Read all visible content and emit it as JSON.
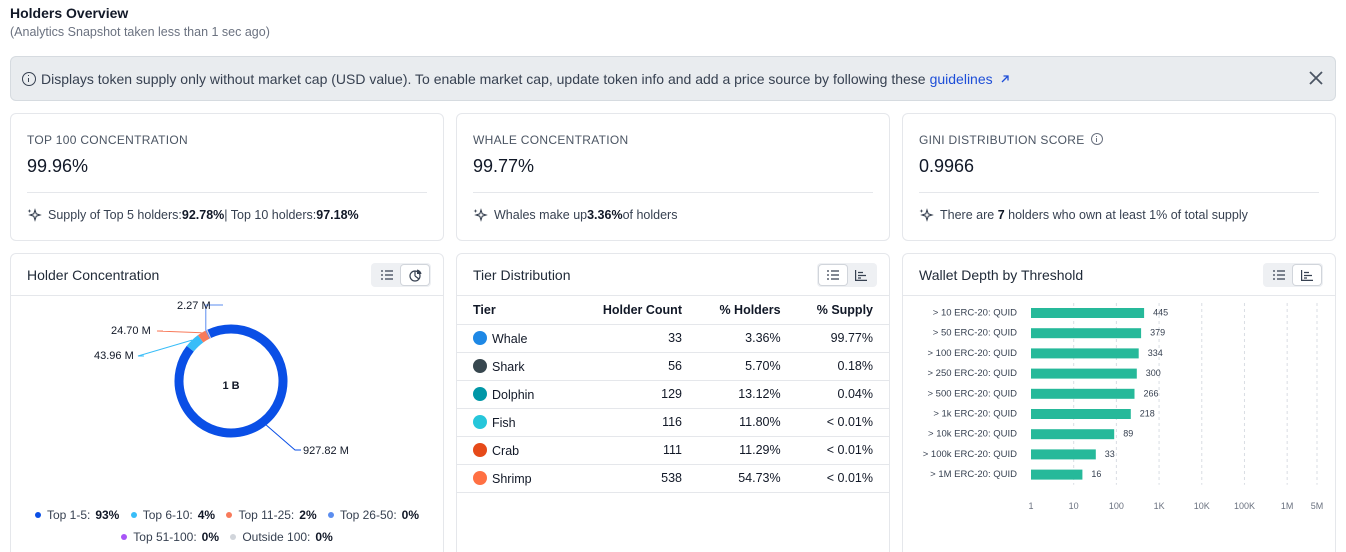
{
  "header": {
    "title": "Holders Overview",
    "subtitle": "(Analytics Snapshot taken less than 1 sec ago)"
  },
  "banner": {
    "text": "Displays token supply only without market cap (USD value). To enable market cap, update token info and add a price source by following these",
    "link_label": "guidelines",
    "link_icon": "external-link-icon",
    "close_icon": "close-icon"
  },
  "metrics": [
    {
      "label": "TOP 100 CONCENTRATION",
      "value": "99.96%",
      "footer_parts": [
        "Supply of Top 5 holders: ",
        "92.78%",
        " | Top 10 holders: ",
        "97.18%"
      ]
    },
    {
      "label": "WHALE CONCENTRATION",
      "value": "99.77%",
      "footer_parts": [
        "Whales make up ",
        "3.36%",
        " of holders"
      ]
    },
    {
      "label": "GINI DISTRIBUTION SCORE",
      "value": "0.9966",
      "footer_parts": [
        "There are ",
        "7",
        " holders who own at least 1% of total supply"
      ]
    }
  ],
  "holder_concentration": {
    "title": "Holder Concentration",
    "center_label": "1 B",
    "colors": {
      "top1_5": "#0a4fe6",
      "top6_10": "#38bdf8",
      "top11_25": "#f87a5a",
      "top26_50": "#5b8def",
      "top51_100": "#a855f7",
      "outside100": "#d1d5db"
    },
    "slice_labels": [
      "927.82 M",
      "43.96 M",
      "24.70 M",
      "2.27 M"
    ],
    "legend": [
      {
        "label": "Top 1-5:",
        "value": "93%",
        "color": "#0a4fe6"
      },
      {
        "label": "Top 6-10:",
        "value": "4%",
        "color": "#38bdf8"
      },
      {
        "label": "Top 11-25:",
        "value": "2%",
        "color": "#f87a5a"
      },
      {
        "label": "Top 26-50:",
        "value": "0%",
        "color": "#5b8def"
      },
      {
        "label": "Top 51-100:",
        "value": "0%",
        "color": "#a855f7"
      },
      {
        "label": "Outside 100:",
        "value": "0%",
        "color": "#d1d5db"
      }
    ]
  },
  "tier_distribution": {
    "title": "Tier Distribution",
    "columns": [
      "Tier",
      "Holder Count",
      "% Holders",
      "% Supply"
    ],
    "rows": [
      {
        "tier": "Whale",
        "icon": "whale-icon",
        "color": "#1e88e5",
        "count": "33",
        "holders": "3.36%",
        "supply": "99.77%"
      },
      {
        "tier": "Shark",
        "icon": "shark-icon",
        "color": "#37474f",
        "count": "56",
        "holders": "5.70%",
        "supply": "0.18%"
      },
      {
        "tier": "Dolphin",
        "icon": "dolphin-icon",
        "color": "#0097a7",
        "count": "129",
        "holders": "13.12%",
        "supply": "0.04%"
      },
      {
        "tier": "Fish",
        "icon": "fish-icon",
        "color": "#26c6da",
        "count": "116",
        "holders": "11.80%",
        "supply": "< 0.01%"
      },
      {
        "tier": "Crab",
        "icon": "crab-icon",
        "color": "#e64a19",
        "count": "111",
        "holders": "11.29%",
        "supply": "< 0.01%"
      },
      {
        "tier": "Shrimp",
        "icon": "shrimp-icon",
        "color": "#ff7043",
        "count": "538",
        "holders": "54.73%",
        "supply": "< 0.01%"
      }
    ]
  },
  "wallet_depth": {
    "title": "Wallet Depth by Threshold",
    "bar_color": "#26b99a"
  },
  "chart_data": [
    {
      "type": "pie",
      "title": "Holder Concentration",
      "center_label": "1 B",
      "categories": [
        "Top 1-5",
        "Top 6-10",
        "Top 11-25",
        "Top 26-50",
        "Top 51-100",
        "Outside 100"
      ],
      "values": [
        927.82,
        43.96,
        24.7,
        2.27,
        0.5,
        0.2
      ],
      "slice_value_labels": [
        "927.82 M",
        "43.96 M",
        "24.70 M",
        "2.27 M"
      ],
      "unit": "M"
    },
    {
      "type": "bar",
      "orientation": "horizontal",
      "title": "Wallet Depth by Threshold",
      "scale": "log",
      "categories": [
        "> 10 ERC-20: QUID",
        "> 50 ERC-20: QUID",
        "> 100 ERC-20: QUID",
        "> 250 ERC-20: QUID",
        "> 500 ERC-20: QUID",
        "> 1k ERC-20: QUID",
        "> 10k ERC-20: QUID",
        "> 100k ERC-20: QUID",
        "> 1M ERC-20: QUID"
      ],
      "values": [
        445,
        379,
        334,
        300,
        266,
        218,
        89,
        33,
        16
      ],
      "tick_labels": [
        "1",
        "10",
        "100",
        "1K",
        "10K",
        "100K",
        "1M",
        "5M"
      ],
      "tick_values": [
        1,
        10,
        100,
        1000,
        10000,
        100000,
        1000000,
        5000000
      ],
      "grid": true
    }
  ]
}
